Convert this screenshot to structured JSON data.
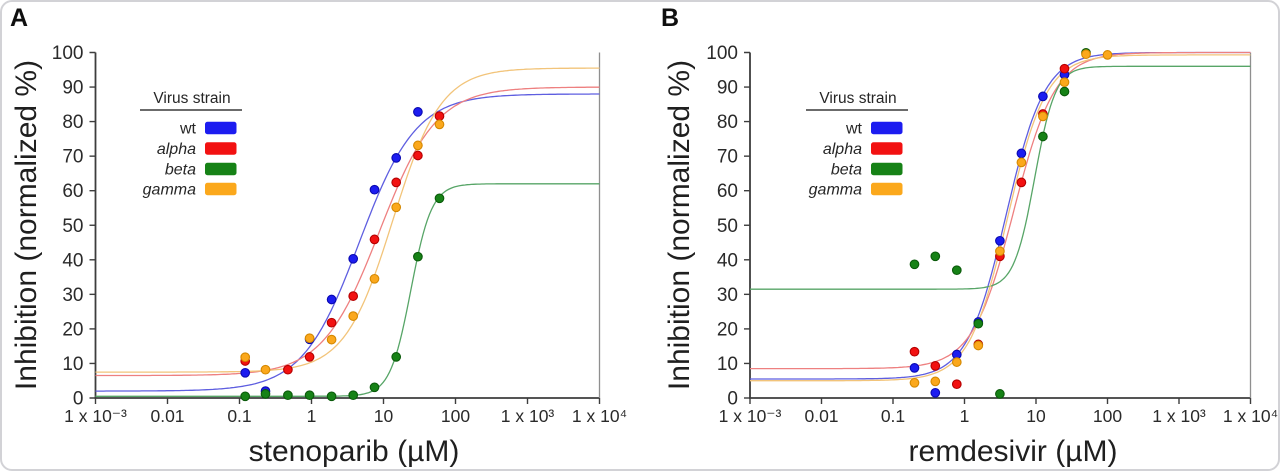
{
  "figure": {
    "background": "#ffffff",
    "border_color": "#d2d2d6"
  },
  "chart_data": [
    {
      "type": "scatter",
      "panel_label": "A",
      "title": "",
      "xlabel": "stenoparib (µM)",
      "ylabel": "Inhibition (normalized %)",
      "x_scale": "log",
      "xlim": [
        0.001,
        10000
      ],
      "ylim": [
        0,
        100
      ],
      "grid": false,
      "x_tick_labels": [
        "1 x 10⁻³",
        "0.01",
        "0.1",
        "1",
        "10",
        "100",
        "1 x 10³",
        "1 x 10⁴"
      ],
      "y_ticks": [
        0,
        10,
        20,
        30,
        40,
        50,
        60,
        70,
        80,
        90,
        100
      ],
      "axis_color": "#3d3d3d",
      "right_spine_color": "#8f8f8f",
      "tick_text_color": "#2a2a2a",
      "legend": {
        "title": "Virus strain",
        "position": "upper left"
      },
      "series": [
        {
          "name": "wt",
          "italic": false,
          "color": "#1c1cf0",
          "edge_color": "#0909b0",
          "line_color": "#5e5ee0",
          "points": [
            [
              0.12,
              7.3
            ],
            [
              0.23,
              2
            ],
            [
              0.94,
              17
            ],
            [
              1.9,
              28.5
            ],
            [
              3.8,
              40.3
            ],
            [
              7.5,
              60.3
            ],
            [
              15,
              69.5
            ],
            [
              30,
              82.8
            ]
          ],
          "fit": {
            "bottom": 2,
            "top": 88,
            "ec50": 4.6,
            "hill": 1.1
          }
        },
        {
          "name": "alpha",
          "italic": true,
          "color": "#f21111",
          "edge_color": "#b50000",
          "line_color": "#ee8080",
          "points": [
            [
              0.12,
              10.7
            ],
            [
              0.47,
              8.2
            ],
            [
              0.94,
              11.9
            ],
            [
              1.9,
              21.8
            ],
            [
              3.8,
              29.5
            ],
            [
              7.5,
              45.9
            ],
            [
              15,
              62.4
            ],
            [
              30,
              70.2
            ],
            [
              60,
              81.6
            ]
          ],
          "fit": {
            "bottom": 6.5,
            "top": 90,
            "ec50": 8.8,
            "hill": 1.1
          }
        },
        {
          "name": "beta",
          "italic": true,
          "color": "#168216",
          "edge_color": "#0a5a0a",
          "line_color": "#57a567",
          "points": [
            [
              0.12,
              0.5
            ],
            [
              0.23,
              1.2
            ],
            [
              0.47,
              0.8
            ],
            [
              0.94,
              0.8
            ],
            [
              1.9,
              0.5
            ],
            [
              3.8,
              0.8
            ],
            [
              7.5,
              3.1
            ],
            [
              15,
              11.9
            ],
            [
              30,
              40.9
            ],
            [
              60,
              57.8
            ]
          ],
          "fit": {
            "bottom": 0.5,
            "top": 62,
            "ec50": 24,
            "hill": 3.0
          }
        },
        {
          "name": "gamma",
          "italic": true,
          "color": "#fba81c",
          "edge_color": "#d48800",
          "line_color": "#f2c47a",
          "points": [
            [
              0.12,
              11.8
            ],
            [
              0.23,
              8.2
            ],
            [
              0.94,
              17.3
            ],
            [
              1.9,
              16.9
            ],
            [
              3.8,
              23.7
            ],
            [
              7.5,
              34.5
            ],
            [
              15,
              55.2
            ],
            [
              30,
              73.1
            ],
            [
              60,
              79.2
            ]
          ],
          "fit": {
            "bottom": 7.5,
            "top": 95.5,
            "ec50": 13.5,
            "hill": 1.3
          }
        }
      ]
    },
    {
      "type": "scatter",
      "panel_label": "B",
      "title": "",
      "xlabel": "remdesivir (µM)",
      "ylabel": "Inhibition (normalized %)",
      "x_scale": "log",
      "xlim": [
        0.001,
        10000
      ],
      "ylim": [
        0,
        100
      ],
      "grid": false,
      "x_tick_labels": [
        "1 x 10⁻³",
        "0.01",
        "0.1",
        "1",
        "10",
        "100",
        "1 x 10³",
        "1 x 10⁴"
      ],
      "y_ticks": [
        0,
        10,
        20,
        30,
        40,
        50,
        60,
        70,
        80,
        90,
        100
      ],
      "axis_color": "#3d3d3d",
      "right_spine_color": "#8f8f8f",
      "tick_text_color": "#2a2a2a",
      "legend": {
        "title": "Virus strain",
        "position": "upper left"
      },
      "series": [
        {
          "name": "wt",
          "italic": false,
          "color": "#1c1cf0",
          "edge_color": "#0909b0",
          "line_color": "#5e5ee0",
          "points": [
            [
              0.2,
              8.7
            ],
            [
              0.39,
              1.5
            ],
            [
              0.78,
              12.6
            ],
            [
              1.56,
              22
            ],
            [
              3.13,
              45.5
            ],
            [
              6.25,
              70.8
            ],
            [
              12.5,
              87.3
            ],
            [
              25,
              93.6
            ]
          ],
          "fit": {
            "bottom": 5.5,
            "top": 100,
            "ec50": 3.8,
            "hill": 1.6
          }
        },
        {
          "name": "alpha",
          "italic": true,
          "color": "#f21111",
          "edge_color": "#b50000",
          "line_color": "#ee8080",
          "points": [
            [
              0.2,
              13.4
            ],
            [
              0.39,
              9.3
            ],
            [
              0.78,
              4
            ],
            [
              1.56,
              15.5
            ],
            [
              3.13,
              41
            ],
            [
              6.25,
              62.4
            ],
            [
              12.5,
              82.2
            ],
            [
              25,
              95.3
            ]
          ],
          "fit": {
            "bottom": 8.5,
            "top": 100,
            "ec50": 4.9,
            "hill": 1.5
          }
        },
        {
          "name": "beta",
          "italic": true,
          "color": "#168216",
          "edge_color": "#0a5a0a",
          "line_color": "#57a567",
          "points": [
            [
              0.2,
              38.7
            ],
            [
              0.39,
              41
            ],
            [
              0.78,
              37
            ],
            [
              1.56,
              21.5
            ],
            [
              3.13,
              1.2
            ],
            [
              12.5,
              75.7
            ],
            [
              25,
              88.7
            ],
            [
              50,
              99.9
            ]
          ],
          "fit": {
            "bottom": 31.5,
            "top": 96,
            "ec50": 9.6,
            "hill": 3.0
          }
        },
        {
          "name": "gamma",
          "italic": true,
          "color": "#fba81c",
          "edge_color": "#d48800",
          "line_color": "#f2c47a",
          "points": [
            [
              0.2,
              4.4
            ],
            [
              0.39,
              4.8
            ],
            [
              0.78,
              10.4
            ],
            [
              1.56,
              15.2
            ],
            [
              3.13,
              42.5
            ],
            [
              6.25,
              68.2
            ],
            [
              12.5,
              81.5
            ],
            [
              25,
              91.4
            ],
            [
              50,
              99.5
            ],
            [
              100,
              99.3
            ]
          ],
          "fit": {
            "bottom": 5.0,
            "top": 99.3,
            "ec50": 4.0,
            "hill": 1.6
          }
        }
      ]
    }
  ]
}
